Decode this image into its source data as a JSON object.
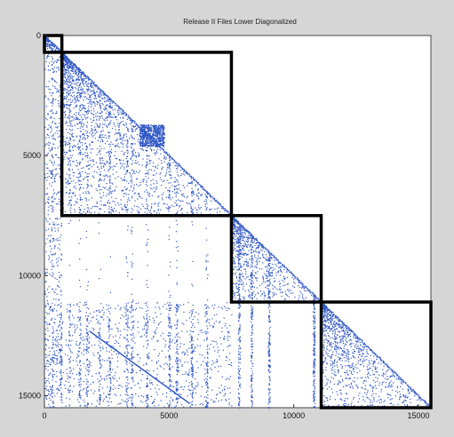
{
  "chart_data": {
    "type": "heatmap",
    "subtype": "sparsity-pattern",
    "title": "Release II Files Lower Diagonalized",
    "xlim": [
      0,
      15500
    ],
    "ylim": [
      0,
      15500
    ],
    "y_reversed": true,
    "x_ticks": [
      {
        "value": 0,
        "label": "0"
      },
      {
        "value": 5000,
        "label": "5000"
      },
      {
        "value": 10000,
        "label": "10000"
      },
      {
        "value": 15000,
        "label": "15000"
      }
    ],
    "y_ticks": [
      {
        "value": 0,
        "label": "0"
      },
      {
        "value": 5000,
        "label": "5000"
      },
      {
        "value": 10000,
        "label": "10000"
      },
      {
        "value": 15000,
        "label": "15000"
      }
    ],
    "highlight_blocks": [
      {
        "from": 0,
        "to": 700
      },
      {
        "from": 700,
        "to": 7500
      },
      {
        "from": 7500,
        "to": 11100
      },
      {
        "from": 11100,
        "to": 15500
      }
    ],
    "dense_region": {
      "x": [
        3800,
        4800
      ],
      "y": [
        3700,
        4600
      ]
    },
    "colors": {
      "points": "#2f56c4",
      "block_border": "#000000",
      "background": "#d6d6d6"
    }
  }
}
